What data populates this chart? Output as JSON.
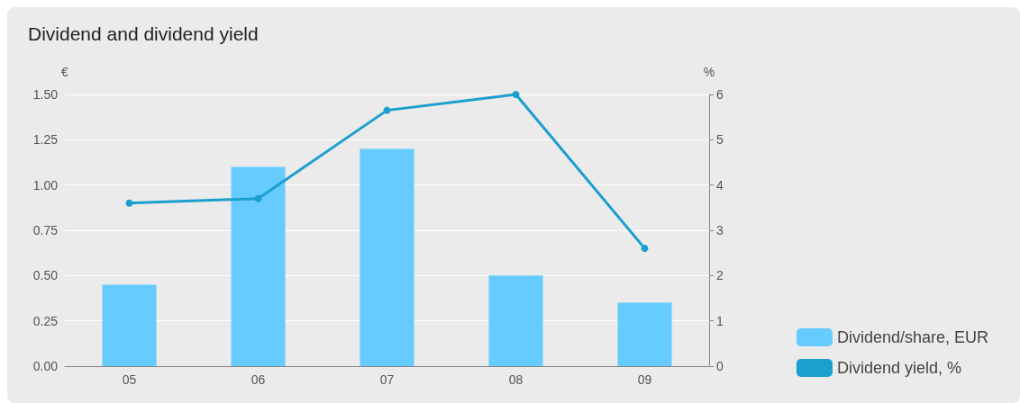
{
  "chart_data": {
    "type": "bar",
    "title": "Dividend and dividend yield",
    "ylabel": "€",
    "y2label": "%",
    "categories": [
      "05",
      "06",
      "07",
      "08",
      "09"
    ],
    "series": [
      {
        "name": "Dividend/share, EUR",
        "color": "#66ccff",
        "values": [
          0.45,
          1.1,
          1.2,
          0.5,
          0.35
        ]
      },
      {
        "name": "Dividend yield, %",
        "type": "line",
        "axis": "y2",
        "color": "#1a9fcf",
        "values": [
          3.6,
          3.7,
          5.65,
          6.0,
          2.6
        ]
      }
    ],
    "ylim": [
      0,
      1.5
    ],
    "yticks": [
      {
        "value": 0,
        "label": "0.00"
      },
      {
        "value": 0.25,
        "label": "0.25"
      },
      {
        "value": 0.5,
        "label": "0.50"
      },
      {
        "value": 0.75,
        "label": "0.75"
      },
      {
        "value": 1,
        "label": "1.00"
      },
      {
        "value": 1.25,
        "label": "1.25"
      },
      {
        "value": 1.5,
        "label": "1.50"
      }
    ],
    "y2lim": [
      0,
      6
    ],
    "y2ticks": [
      0,
      1,
      2,
      3,
      4,
      5,
      6
    ],
    "grid": "y",
    "legend": "bottom right",
    "marker": "circle",
    "line_style": "solid"
  }
}
